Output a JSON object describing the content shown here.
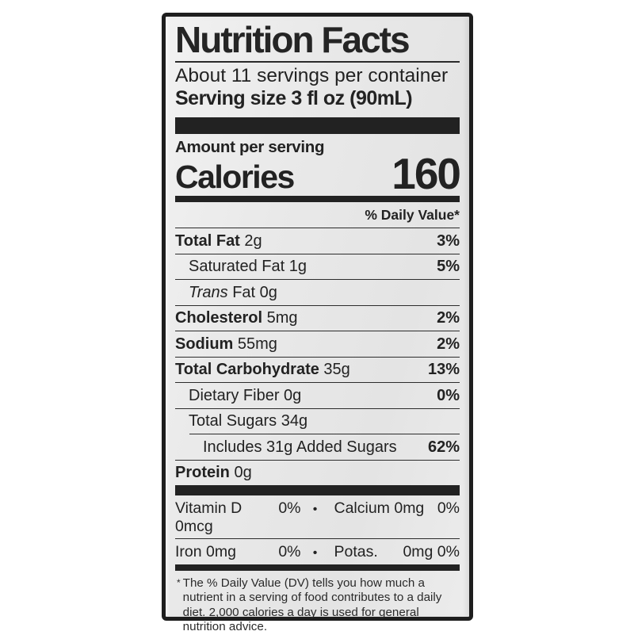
{
  "label": {
    "title": "Nutrition Facts",
    "servings_line": "About 11 servings per container",
    "serving_size_line": "Serving size 3 fl oz (90mL)",
    "amount_per_serving": "Amount per serving",
    "calories_label": "Calories",
    "calories_value": "160",
    "daily_value_header": "% Daily Value*",
    "colors": {
      "ink": "#222222",
      "label_background": "#e9e9e9",
      "border": "#1e1e1e",
      "page_background": "#ffffff"
    },
    "rows": [
      {
        "name": "Total Fat",
        "amount": "2g",
        "dv": "3%",
        "emphasis": "bold",
        "indent": 0
      },
      {
        "name": "Saturated Fat",
        "amount": "1g",
        "dv": "5%",
        "emphasis": "plain",
        "indent": 1
      },
      {
        "name": "Fat",
        "italic_prefix": "Trans",
        "amount": "0g",
        "dv": "",
        "emphasis": "plain",
        "indent": 1
      },
      {
        "name": "Cholesterol",
        "amount": "5mg",
        "dv": "2%",
        "emphasis": "bold",
        "indent": 0
      },
      {
        "name": "Sodium",
        "amount": "55mg",
        "dv": "2%",
        "emphasis": "bold",
        "indent": 0
      },
      {
        "name": "Total Carbohydrate",
        "amount": "35g",
        "dv": "13%",
        "emphasis": "bold",
        "indent": 0
      },
      {
        "name": "Dietary Fiber",
        "amount": "0g",
        "dv": "0%",
        "emphasis": "plain",
        "indent": 1
      },
      {
        "name": "Total Sugars",
        "amount": "34g",
        "dv": "",
        "emphasis": "plain",
        "indent": 1
      },
      {
        "name": "Includes 31g Added Sugars",
        "amount": "",
        "dv": "62%",
        "emphasis": "plain",
        "indent": 2,
        "separator_indented": true
      },
      {
        "name": "Protein",
        "amount": "0g",
        "dv": "",
        "emphasis": "bold",
        "indent": 0
      }
    ],
    "micronutrient_rows": [
      {
        "left_name": "Vitamin D 0mcg",
        "left_value": "0%",
        "bullet": "•",
        "right_name": "Calcium 0mg",
        "right_value": "0%"
      },
      {
        "left_name": "Iron 0mg",
        "left_value": "0%",
        "bullet": "•",
        "right_name": "Potas.",
        "right_value": "0mg 0%"
      }
    ],
    "footnote_marker": "*",
    "footnote_text": "The % Daily Value (DV) tells you how much a nutrient in a serving of food contributes to a daily diet. 2,000 calories a day is used for general nutrition advice."
  }
}
